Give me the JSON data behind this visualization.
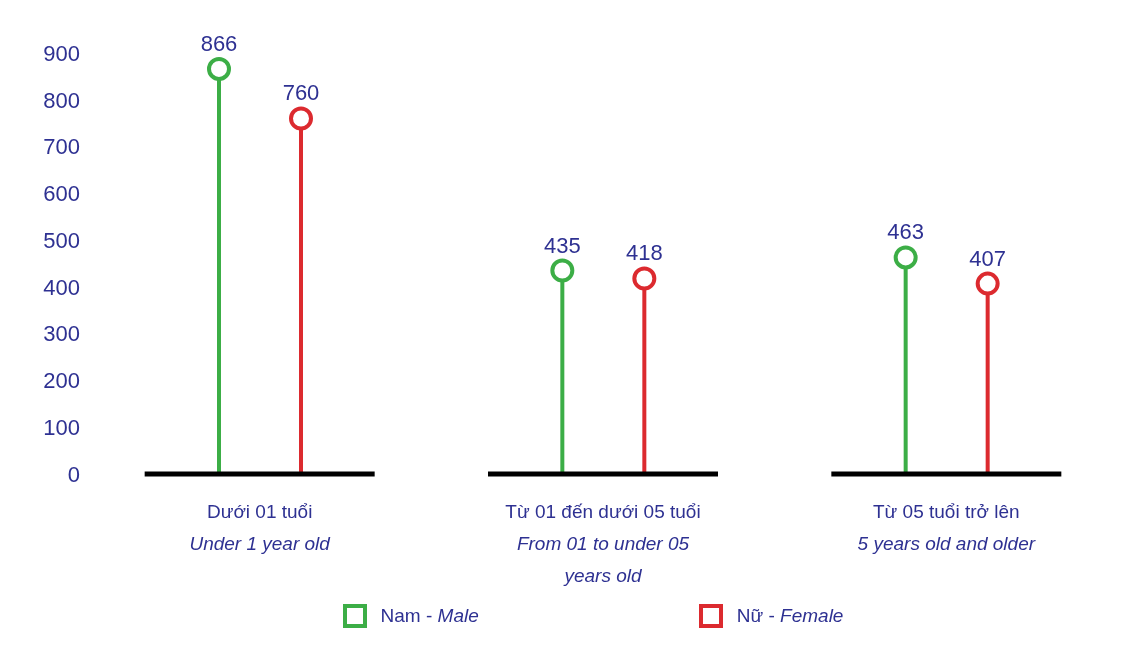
{
  "chart_data": {
    "type": "lollipop",
    "categories": [
      "Dưới 01 tuổi\nUnder 1 year old",
      "Từ 01 đến dưới 05 tuổi\nFrom 01 to under 05 years old",
      "Từ 05 tuổi trở lên\n5 years old and older"
    ],
    "series": [
      {
        "name": "Nam - Male",
        "color": "#3cae46",
        "values": [
          866,
          435,
          463
        ]
      },
      {
        "name": "Nữ - Female",
        "color": "#dc2a2f",
        "values": [
          760,
          418,
          407
        ]
      }
    ],
    "ylim": [
      0,
      900
    ],
    "yticks": [
      0,
      100,
      200,
      300,
      400,
      500,
      600,
      700,
      800,
      900
    ],
    "data_labels": true,
    "legend": "bottom",
    "marker": "circle"
  }
}
